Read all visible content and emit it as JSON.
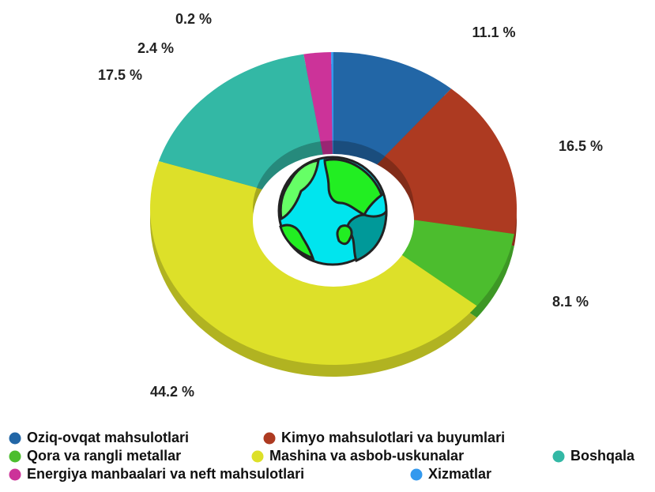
{
  "chart_data": {
    "type": "pie",
    "categories": [
      "Oziq-ovqat mahsulotlari",
      "Kimyo mahsulotlari va buyumlari",
      "Qora va rangli metallar",
      "Mashina va asbob-uskunalar",
      "Boshqala",
      "Energiya manbaalari va neft mahsulotlari",
      "Xizmatlar"
    ],
    "values": [
      11.1,
      16.5,
      8.1,
      44.2,
      17.5,
      2.4,
      0.2
    ],
    "value_labels": [
      "11.1 %",
      "16.5 %",
      "8.1 %",
      "44.2 %",
      "17.5 %",
      "2.4 %",
      "0.2 %"
    ],
    "colors": [
      "#2266a6",
      "#ad3a21",
      "#4cbd2e",
      "#dde029",
      "#33b8a5",
      "#cc3399",
      "#3399ee"
    ]
  }
}
